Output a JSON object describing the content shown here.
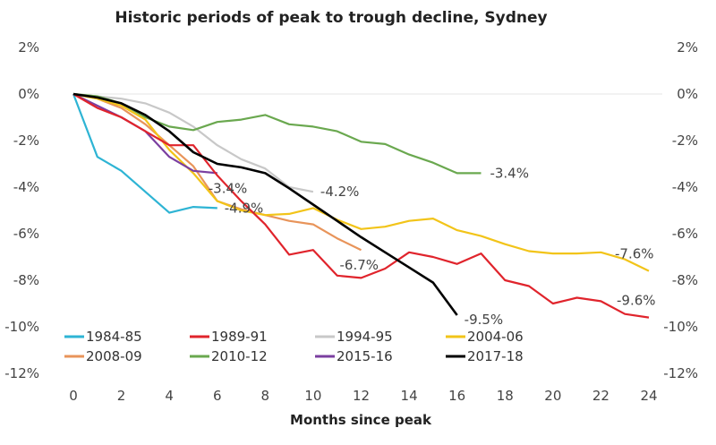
{
  "chart_data": {
    "type": "line",
    "title": "Historic periods of peak to trough decline, Sydney",
    "xlabel": "Months since peak",
    "ylabel": "",
    "xlim": [
      0,
      24
    ],
    "ylim": [
      -12,
      2
    ],
    "x_ticks": [
      "0",
      "2",
      "4",
      "6",
      "8",
      "10",
      "12",
      "14",
      "16",
      "18",
      "20",
      "22",
      "24"
    ],
    "x_tick_values": [
      0,
      2,
      4,
      6,
      8,
      10,
      12,
      14,
      16,
      18,
      20,
      22,
      24
    ],
    "y_ticks": [
      "2%",
      "0%",
      "-2%",
      "-4%",
      "-6%",
      "-8%",
      "-10%",
      "-12%"
    ],
    "y_tick_values": [
      2,
      0,
      -2,
      -4,
      -6,
      -8,
      -10,
      -12
    ],
    "secondary_y_axis": true,
    "grid": "zero-line only",
    "legend_position": "bottom-left inside plot",
    "series": [
      {
        "name": "1984-85",
        "color": "#2eb4d4",
        "x": [
          0,
          1,
          2,
          3,
          4,
          5,
          6
        ],
        "values": [
          0,
          -2.7,
          -3.3,
          -4.2,
          -5.1,
          -4.85,
          -4.9
        ],
        "end_label": "-4.9%"
      },
      {
        "name": "1989-91",
        "color": "#e0242c",
        "x": [
          0,
          1,
          2,
          3,
          4,
          5,
          6,
          7,
          8,
          9,
          10,
          11,
          12,
          13,
          14,
          15,
          16,
          17,
          18,
          19,
          20,
          21,
          22,
          23,
          24
        ],
        "values": [
          0,
          -0.6,
          -1.0,
          -1.6,
          -2.2,
          -2.2,
          -3.5,
          -4.6,
          -5.6,
          -6.9,
          -6.7,
          -7.8,
          -7.9,
          -7.5,
          -6.8,
          -7.0,
          -7.3,
          -6.85,
          -8.0,
          -8.25,
          -9.0,
          -8.75,
          -8.9,
          -9.45,
          -9.6
        ],
        "end_label": "-9.6%"
      },
      {
        "name": "1994-95",
        "color": "#c8c8c8",
        "x": [
          0,
          1,
          2,
          3,
          4,
          5,
          6,
          7,
          8,
          9,
          10
        ],
        "values": [
          0,
          -0.1,
          -0.2,
          -0.4,
          -0.8,
          -1.4,
          -2.2,
          -2.8,
          -3.2,
          -4.0,
          -4.2
        ],
        "end_label": "-4.2%"
      },
      {
        "name": "2004-06",
        "color": "#f2c419",
        "x": [
          0,
          1,
          2,
          3,
          4,
          5,
          6,
          7,
          8,
          9,
          10,
          11,
          12,
          13,
          14,
          15,
          16,
          17,
          18,
          19,
          20,
          21,
          22,
          23,
          24
        ],
        "values": [
          0,
          -0.2,
          -0.5,
          -1.1,
          -2.4,
          -3.4,
          -4.6,
          -5.0,
          -5.2,
          -5.15,
          -4.9,
          -5.4,
          -5.8,
          -5.7,
          -5.45,
          -5.35,
          -5.85,
          -6.1,
          -6.45,
          -6.75,
          -6.85,
          -6.85,
          -6.8,
          -7.1,
          -7.6
        ],
        "end_label": "-7.6%"
      },
      {
        "name": "2008-09",
        "color": "#e8945a",
        "x": [
          0,
          1,
          2,
          3,
          4,
          5,
          6,
          7,
          8,
          9,
          10,
          11,
          12
        ],
        "values": [
          0,
          -0.2,
          -0.6,
          -1.3,
          -2.2,
          -3.1,
          -4.6,
          -4.95,
          -5.2,
          -5.45,
          -5.6,
          -6.2,
          -6.7
        ],
        "end_label": "-6.7%"
      },
      {
        "name": "2010-12",
        "color": "#6aa84f",
        "x": [
          0,
          1,
          2,
          3,
          4,
          5,
          6,
          7,
          8,
          9,
          10,
          11,
          12,
          13,
          14,
          15,
          16,
          17
        ],
        "values": [
          0,
          -0.1,
          -0.4,
          -1.0,
          -1.4,
          -1.55,
          -1.2,
          -1.1,
          -0.9,
          -1.3,
          -1.4,
          -1.6,
          -2.05,
          -2.15,
          -2.6,
          -2.95,
          -3.4,
          -3.4
        ],
        "end_label": "-3.4%"
      },
      {
        "name": "2015-16",
        "color": "#7b3fa0",
        "x": [
          0,
          1,
          2,
          3,
          4,
          5,
          6
        ],
        "values": [
          0,
          -0.5,
          -1.0,
          -1.6,
          -2.7,
          -3.3,
          -3.4
        ],
        "end_label": "-3.4%"
      },
      {
        "name": "2017-18",
        "color": "#000000",
        "x": [
          0,
          1,
          2,
          3,
          4,
          5,
          6,
          7,
          8,
          9,
          10,
          11,
          12,
          13,
          14,
          15,
          16
        ],
        "values": [
          0,
          -0.15,
          -0.4,
          -0.9,
          -1.6,
          -2.5,
          -3.0,
          -3.15,
          -3.4,
          -4.05,
          -4.75,
          -5.45,
          -6.15,
          -6.8,
          -7.45,
          -8.1,
          -9.5
        ],
        "end_label": "-9.5%"
      }
    ]
  }
}
